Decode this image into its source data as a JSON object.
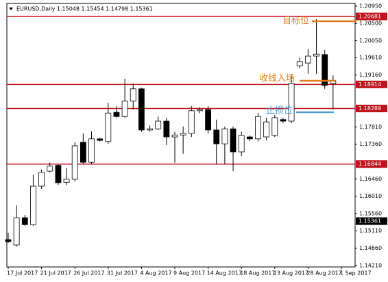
{
  "chart_data": {
    "type": "candlestick",
    "title": "EURUSD,Daily  1.15048 1.15454 1.14798 1.15361",
    "categories": [
      "17 Jul 2017",
      null,
      null,
      null,
      "21 Jul 2017",
      null,
      null,
      null,
      "26 Jul 2017",
      null,
      null,
      null,
      "31 Jul 2017",
      null,
      null,
      null,
      "4 Aug 2017",
      null,
      null,
      null,
      "9 Aug 2017",
      null,
      null,
      null,
      "14 Aug 2017",
      null,
      null,
      null,
      "18 Aug 2017",
      null,
      null,
      null,
      "23 Aug 2017",
      null,
      null,
      null,
      "28 Aug 2017",
      null,
      null,
      null,
      "1 Sep 2017"
    ],
    "open": [
      1.1488,
      1.1474,
      1.1545,
      1.1527,
      1.1627,
      1.1666,
      1.1681,
      1.1637,
      1.1645,
      1.1741,
      1.1689,
      1.175,
      1.1743,
      1.1819,
      1.1808,
      1.1848,
      1.188,
      1.1773,
      1.1776,
      1.1796,
      1.1755,
      1.176,
      1.1764,
      1.1823,
      1.1826,
      1.1773,
      1.1737,
      1.1776,
      1.1716,
      1.1755,
      1.175,
      1.1755,
      1.1759,
      1.18,
      1.1796,
      1.194,
      1.1947,
      1.1965,
      1.1969,
      1.1894,
      null
    ],
    "high": [
      1.1506,
      1.1577,
      1.1552,
      1.1657,
      1.167,
      1.1688,
      1.1684,
      1.1675,
      1.1741,
      1.1764,
      1.1769,
      1.1753,
      1.1844,
      1.1835,
      1.1906,
      1.1894,
      1.1883,
      1.1785,
      1.1808,
      1.1805,
      1.1768,
      1.1782,
      1.1835,
      1.1832,
      1.1835,
      1.18,
      1.1782,
      1.1782,
      1.1769,
      1.1759,
      1.1817,
      1.1805,
      1.1812,
      1.1805,
      1.1915,
      1.1961,
      1.1983,
      1.2061,
      1.1981,
      1.1915,
      null
    ],
    "low": [
      1.1479,
      1.147,
      1.1524,
      1.1524,
      1.162,
      1.1663,
      1.163,
      1.163,
      1.1639,
      1.1684,
      1.1684,
      1.1743,
      1.1737,
      1.1805,
      1.1805,
      1.1826,
      1.1768,
      1.1769,
      1.1773,
      1.1734,
      1.1688,
      1.1711,
      1.1755,
      1.1817,
      1.1764,
      1.1684,
      1.1684,
      1.1666,
      1.1705,
      1.1744,
      1.1743,
      1.1746,
      1.1755,
      1.1791,
      1.1791,
      1.1933,
      1.1919,
      1.1919,
      1.188,
      1.1826,
      null
    ],
    "close": [
      1.1483,
      1.1545,
      1.1527,
      1.1627,
      1.1663,
      1.1679,
      1.1636,
      1.1645,
      1.1732,
      1.1689,
      1.175,
      1.1746,
      1.1817,
      1.1808,
      1.1848,
      1.188,
      1.1773,
      1.1776,
      1.1796,
      1.1755,
      1.176,
      1.1764,
      1.1823,
      1.1826,
      1.1773,
      1.1737,
      1.1776,
      1.1716,
      1.1759,
      1.175,
      1.1808,
      1.1794,
      1.1805,
      1.1796,
      1.1894,
      1.1951,
      1.1965,
      1.197,
      1.1889,
      1.1901,
      null
    ],
    "up_color": "#ffffff",
    "down_color": "#000000",
    "ylim": [
      1.1417,
      1.2102
    ],
    "yticks": [
      {
        "value": 1.2095,
        "label": "1.20950"
      },
      {
        "value": 1.205,
        "label": "1.20500"
      },
      {
        "value": 1.2005,
        "label": "1.20050"
      },
      {
        "value": 1.1961,
        "label": "1.19610"
      },
      {
        "value": 1.1916,
        "label": "1.19160"
      },
      {
        "value": 1.1781,
        "label": "1.17810"
      },
      {
        "value": 1.1736,
        "label": "1.17360"
      },
      {
        "value": 1.1646,
        "label": "1.16460"
      },
      {
        "value": 1.1601,
        "label": "1.16010"
      },
      {
        "value": 1.1556,
        "label": "1.15560"
      },
      {
        "value": 1.1511,
        "label": "1.15110"
      },
      {
        "value": 1.1466,
        "label": "1.14660"
      },
      {
        "value": 1.1421,
        "label": "1.14210"
      }
    ],
    "levels": [
      1.20681,
      1.18914,
      1.18289,
      1.16844
    ],
    "level_color": "#c0141c",
    "current_price": 1.15361,
    "annotations": [
      {
        "text": "目标位",
        "color": "#e07b17"
      },
      {
        "text": "收线入场",
        "color": "#e07b17"
      },
      {
        "text": "止损位",
        "color": "#4a9fd8"
      }
    ]
  }
}
